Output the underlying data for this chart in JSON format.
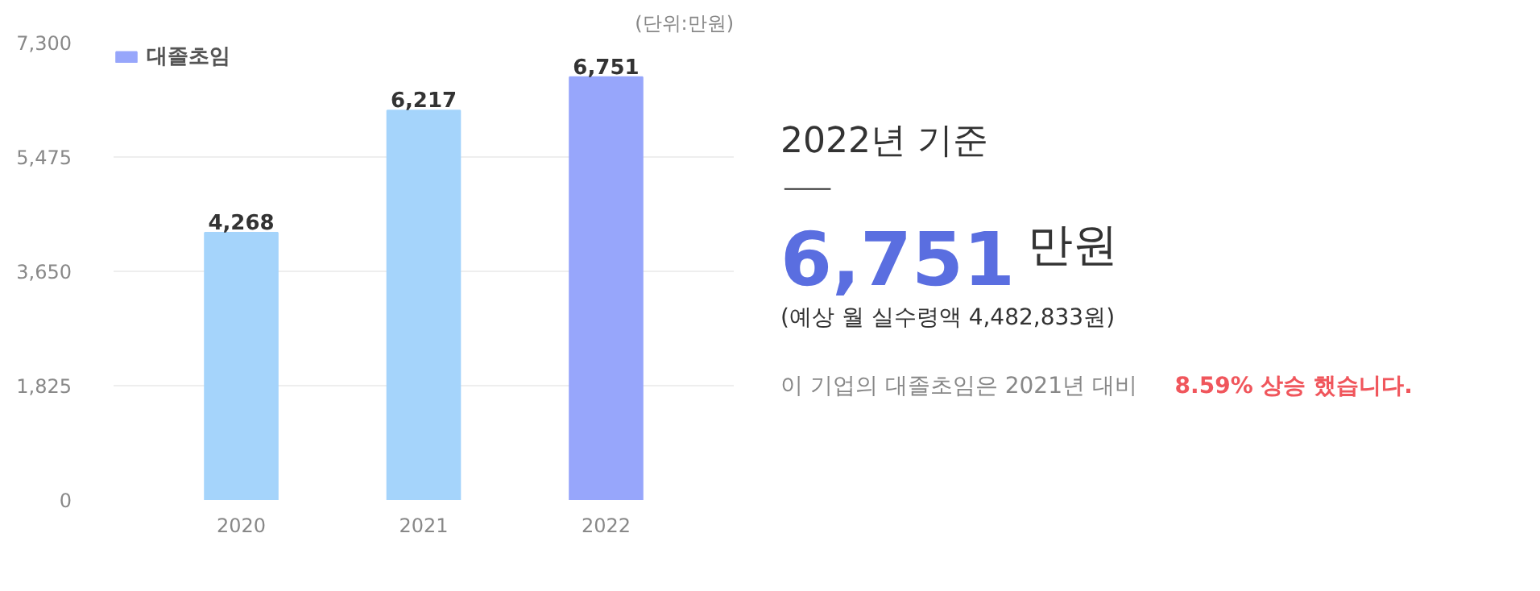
{
  "chart_data": [
    {
      "type": "bar",
      "categories": [
        "2020",
        "2021",
        "2022"
      ],
      "series": [
        {
          "name": "대졸초임",
          "color": "#97a6fb",
          "colors": [
            "#a5d4fb",
            "#a5d4fb",
            "#97a6fb"
          ],
          "values": [
            4268,
            6217,
            6751
          ],
          "value_labels": [
            "4,268",
            "6,217",
            "6,751"
          ]
        }
      ],
      "ylim": [
        0,
        7300
      ],
      "yticks": [
        0,
        {
          "value": 1825,
          "label": "1,825"
        },
        {
          "value": 3650,
          "label": "3,650"
        },
        {
          "value": 5475,
          "label": "5,475"
        },
        {
          "value": 7300,
          "label": "7,300"
        }
      ],
      "grid": "y",
      "legend": "top left",
      "annotations": [
        "(단위:만원)"
      ]
    },
    {
      "type": "other",
      "title": "2022년 기준",
      "annotations": [
        "6,751",
        "만원",
        "(예상 월 실수령액 4,482,833원)",
        "이 기업의 대졸초임은 2021년 대비",
        "8.59% 상승 했습니다."
      ]
    }
  ]
}
